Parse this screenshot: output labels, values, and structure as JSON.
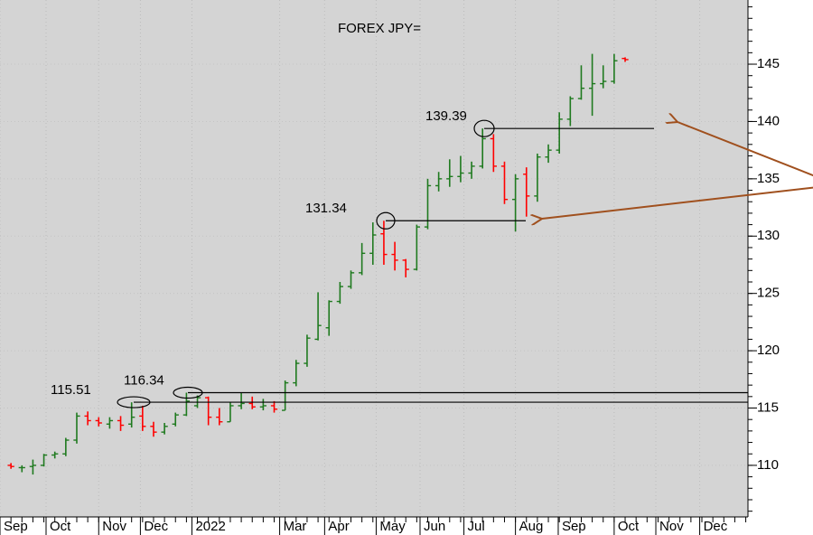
{
  "chart_data": {
    "type": "ohlc",
    "title": "FOREX JPY=",
    "open": [
      110.0,
      109.8,
      109.9,
      110.0,
      110.9,
      111.0,
      112.2,
      114.3,
      113.9,
      113.6,
      113.9,
      113.6,
      114.3,
      113.4,
      112.9,
      113.6,
      114.4,
      115.2,
      115.9,
      114.2,
      113.8,
      115.2,
      115.4,
      115.1,
      115.2,
      114.8,
      117.2,
      118.9,
      121.0,
      122.0,
      124.3,
      125.6,
      126.8,
      128.5,
      130.2,
      128.4,
      127.9,
      127.1,
      130.8,
      134.4,
      135.0,
      135.2,
      135.5,
      136.1,
      138.5,
      136.1,
      133.2,
      135.4,
      133.5,
      136.9,
      137.5,
      140.2,
      142.0,
      142.9,
      143.3,
      143.5,
      145.5
    ],
    "high": [
      110.2,
      110.0,
      110.5,
      111.0,
      111.2,
      112.4,
      114.6,
      114.7,
      114.2,
      114.2,
      114.3,
      115.5,
      115.2,
      113.8,
      113.7,
      114.6,
      116.34,
      116.1,
      116.0,
      115.0,
      115.5,
      116.3,
      116.0,
      115.8,
      115.6,
      117.4,
      119.2,
      121.4,
      125.1,
      124.4,
      126.0,
      127.0,
      129.4,
      131.2,
      131.34,
      129.5,
      128.0,
      131.0,
      135.0,
      135.6,
      136.7,
      137.0,
      136.5,
      139.39,
      138.9,
      136.5,
      135.4,
      136.0,
      137.2,
      138.0,
      140.8,
      142.2,
      144.9,
      145.9,
      144.9,
      145.9,
      145.6
    ],
    "low": [
      109.7,
      109.4,
      109.2,
      109.9,
      110.6,
      110.8,
      111.9,
      113.5,
      113.4,
      113.2,
      113.0,
      113.3,
      113.0,
      112.5,
      112.7,
      113.4,
      114.3,
      115.0,
      113.5,
      113.5,
      113.8,
      114.9,
      114.9,
      114.8,
      114.6,
      114.8,
      116.9,
      118.6,
      120.9,
      121.3,
      124.1,
      125.4,
      126.6,
      127.5,
      127.5,
      127.0,
      126.4,
      127.0,
      130.6,
      133.9,
      134.3,
      134.7,
      135.0,
      135.9,
      135.6,
      132.8,
      130.4,
      131.7,
      133.0,
      136.4,
      137.2,
      139.6,
      141.9,
      140.5,
      142.9,
      143.3,
      145.2
    ],
    "close": [
      109.9,
      109.8,
      110.0,
      110.9,
      111.0,
      112.2,
      114.3,
      113.9,
      113.7,
      113.9,
      113.5,
      114.2,
      113.4,
      112.9,
      113.4,
      114.4,
      115.6,
      115.9,
      114.2,
      113.8,
      115.2,
      115.4,
      115.1,
      115.2,
      114.9,
      117.2,
      118.9,
      121.1,
      122.2,
      124.3,
      125.6,
      126.8,
      128.5,
      130.1,
      128.4,
      127.9,
      127.1,
      130.8,
      134.4,
      135.0,
      135.2,
      135.5,
      136.1,
      138.5,
      136.1,
      133.2,
      135.0,
      133.5,
      136.9,
      137.5,
      140.2,
      142.0,
      142.9,
      143.3,
      143.5,
      145.3,
      145.4
    ],
    "up_color": "#1f7a1f",
    "down_color": "#ff0000",
    "annotations": [
      {
        "value": 115.51
      },
      {
        "value": 116.34
      },
      {
        "value": 131.34
      },
      {
        "value": 139.39
      }
    ],
    "ylim": [
      105.5,
      150.6
    ],
    "yticks": [
      110,
      115,
      120,
      125,
      130,
      135,
      140,
      145
    ],
    "xlim": [
      0,
      68.2
    ],
    "xticks": [
      {
        "value": 0,
        "label": "Sep"
      },
      {
        "value": 4.2,
        "label": "Oct"
      },
      {
        "value": 9.0,
        "label": "Nov"
      },
      {
        "value": 12.8,
        "label": "Dec"
      },
      {
        "value": 17.5,
        "label": "2022"
      },
      {
        "value": 25.5,
        "label": "Mar"
      },
      {
        "value": 29.6,
        "label": "Apr"
      },
      {
        "value": 34.3,
        "label": "May"
      },
      {
        "value": 38.3,
        "label": "Jun"
      },
      {
        "value": 42.3,
        "label": "Jul"
      },
      {
        "value": 47.0,
        "label": "Aug"
      },
      {
        "value": 50.9,
        "label": "Sep"
      },
      {
        "value": 56.0,
        "label": "Oct"
      },
      {
        "value": 59.8,
        "label": "Nov"
      },
      {
        "value": 63.8,
        "label": "Dec"
      }
    ],
    "grid": true
  }
}
